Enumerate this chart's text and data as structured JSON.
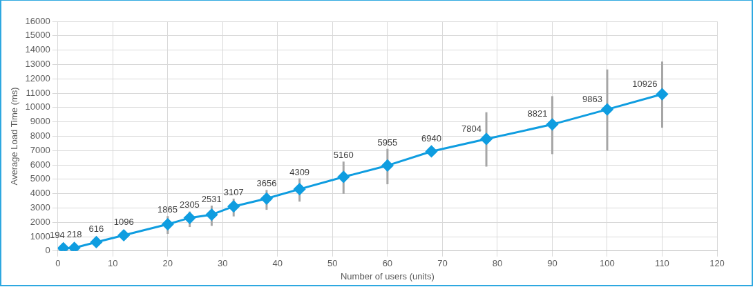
{
  "chart_data": {
    "type": "line",
    "xlabel": "Number of users (units)",
    "ylabel": "Average Load Time (ms)",
    "x": [
      1,
      3,
      7,
      12,
      20,
      24,
      28,
      32,
      38,
      44,
      52,
      60,
      68,
      78,
      90,
      100,
      110
    ],
    "series": [
      {
        "color": "#0f9de0",
        "values": [
          194,
          218,
          616,
          1096,
          1865,
          2305,
          2531,
          3107,
          3656,
          4309,
          5160,
          5955,
          6940,
          7804,
          8821,
          9863,
          10926
        ],
        "errors": [
          null,
          null,
          null,
          null,
          [
            1190,
            2430
          ],
          [
            1670,
            2750
          ],
          [
            1750,
            3160
          ],
          [
            2410,
            3650
          ],
          [
            2870,
            4250
          ],
          [
            3440,
            5060
          ],
          [
            3990,
            6230
          ],
          [
            4650,
            7120
          ],
          null,
          [
            5880,
            9670
          ],
          [
            6750,
            10790
          ],
          [
            7000,
            12650
          ],
          [
            8590,
            13200
          ]
        ]
      }
    ],
    "xlim": [
      0,
      120
    ],
    "xticks": [
      0,
      10,
      20,
      30,
      40,
      50,
      60,
      70,
      80,
      90,
      100,
      110,
      120
    ],
    "ylim": [
      0,
      16000
    ],
    "yticks": [
      0,
      1000,
      2000,
      3000,
      4000,
      5000,
      6000,
      7000,
      8000,
      9000,
      10000,
      11000,
      12000,
      13000,
      14000,
      15000,
      16000
    ],
    "grid": true,
    "legend": false,
    "marker": "diamond",
    "line_style": "solid",
    "data_labels": true
  }
}
